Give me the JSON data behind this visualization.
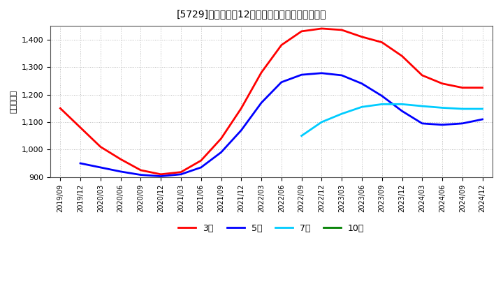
{
  "title": "[5729]　経常利益12か月移動合計の平均値の推移",
  "ylabel": "（百万円）",
  "ylim": [
    900,
    1450
  ],
  "yticks": [
    900,
    1000,
    1100,
    1200,
    1300,
    1400
  ],
  "background_color": "#ffffff",
  "grid_color": "#aaaaaa",
  "series": {
    "3年": {
      "color": "#ff0000",
      "data": [
        [
          "2019/09",
          1150
        ],
        [
          "2019/12",
          1080
        ],
        [
          "2020/03",
          1010
        ],
        [
          "2020/06",
          965
        ],
        [
          "2020/09",
          925
        ],
        [
          "2020/12",
          910
        ],
        [
          "2021/03",
          918
        ],
        [
          "2021/06",
          960
        ],
        [
          "2021/09",
          1040
        ],
        [
          "2021/12",
          1150
        ],
        [
          "2022/03",
          1280
        ],
        [
          "2022/06",
          1380
        ],
        [
          "2022/09",
          1430
        ],
        [
          "2022/12",
          1440
        ],
        [
          "2023/03",
          1435
        ],
        [
          "2023/06",
          1410
        ],
        [
          "2023/09",
          1390
        ],
        [
          "2023/12",
          1340
        ],
        [
          "2024/03",
          1270
        ],
        [
          "2024/06",
          1240
        ],
        [
          "2024/09",
          1225
        ],
        [
          "2024/12",
          1225
        ]
      ]
    },
    "5年": {
      "color": "#0000ff",
      "data": [
        [
          "2019/09",
          null
        ],
        [
          "2019/12",
          950
        ],
        [
          "2020/03",
          935
        ],
        [
          "2020/06",
          920
        ],
        [
          "2020/09",
          908
        ],
        [
          "2020/12",
          903
        ],
        [
          "2021/03",
          910
        ],
        [
          "2021/06",
          935
        ],
        [
          "2021/09",
          990
        ],
        [
          "2021/12",
          1070
        ],
        [
          "2022/03",
          1170
        ],
        [
          "2022/06",
          1245
        ],
        [
          "2022/09",
          1272
        ],
        [
          "2022/12",
          1278
        ],
        [
          "2023/03",
          1270
        ],
        [
          "2023/06",
          1240
        ],
        [
          "2023/09",
          1195
        ],
        [
          "2023/12",
          1140
        ],
        [
          "2024/03",
          1095
        ],
        [
          "2024/06",
          1090
        ],
        [
          "2024/09",
          1095
        ],
        [
          "2024/12",
          1110
        ]
      ]
    },
    "7年": {
      "color": "#00ccff",
      "data": [
        [
          "2019/09",
          null
        ],
        [
          "2019/12",
          null
        ],
        [
          "2020/03",
          null
        ],
        [
          "2020/06",
          null
        ],
        [
          "2020/09",
          null
        ],
        [
          "2020/12",
          null
        ],
        [
          "2021/03",
          null
        ],
        [
          "2021/06",
          null
        ],
        [
          "2021/09",
          null
        ],
        [
          "2021/12",
          null
        ],
        [
          "2022/03",
          null
        ],
        [
          "2022/06",
          null
        ],
        [
          "2022/09",
          1050
        ],
        [
          "2022/12",
          1100
        ],
        [
          "2023/03",
          1130
        ],
        [
          "2023/06",
          1155
        ],
        [
          "2023/09",
          1165
        ],
        [
          "2023/12",
          1165
        ],
        [
          "2024/03",
          1158
        ],
        [
          "2024/06",
          1152
        ],
        [
          "2024/09",
          1148
        ],
        [
          "2024/12",
          1148
        ]
      ]
    },
    "10年": {
      "color": "#008000",
      "data": [
        [
          "2019/09",
          null
        ],
        [
          "2019/12",
          null
        ],
        [
          "2020/03",
          null
        ],
        [
          "2020/06",
          null
        ],
        [
          "2020/09",
          null
        ],
        [
          "2020/12",
          null
        ],
        [
          "2021/03",
          null
        ],
        [
          "2021/06",
          null
        ],
        [
          "2021/09",
          null
        ],
        [
          "2021/12",
          null
        ],
        [
          "2022/03",
          null
        ],
        [
          "2022/06",
          null
        ],
        [
          "2022/09",
          null
        ],
        [
          "2022/12",
          null
        ],
        [
          "2023/03",
          null
        ],
        [
          "2023/06",
          null
        ],
        [
          "2023/09",
          null
        ],
        [
          "2023/12",
          null
        ],
        [
          "2024/03",
          null
        ],
        [
          "2024/06",
          null
        ],
        [
          "2024/09",
          null
        ],
        [
          "2024/12",
          null
        ]
      ]
    }
  },
  "xtick_labels": [
    "2019/09",
    "2019/12",
    "2020/03",
    "2020/06",
    "2020/09",
    "2020/12",
    "2021/03",
    "2021/06",
    "2021/09",
    "2021/12",
    "2022/03",
    "2022/06",
    "2022/09",
    "2022/12",
    "2023/03",
    "2023/06",
    "2023/09",
    "2023/12",
    "2024/03",
    "2024/06",
    "2024/09",
    "2024/12"
  ],
  "legend_labels": [
    "3年",
    "5年",
    "7年",
    "10年"
  ],
  "legend_colors": [
    "#ff0000",
    "#0000ff",
    "#00ccff",
    "#008000"
  ]
}
